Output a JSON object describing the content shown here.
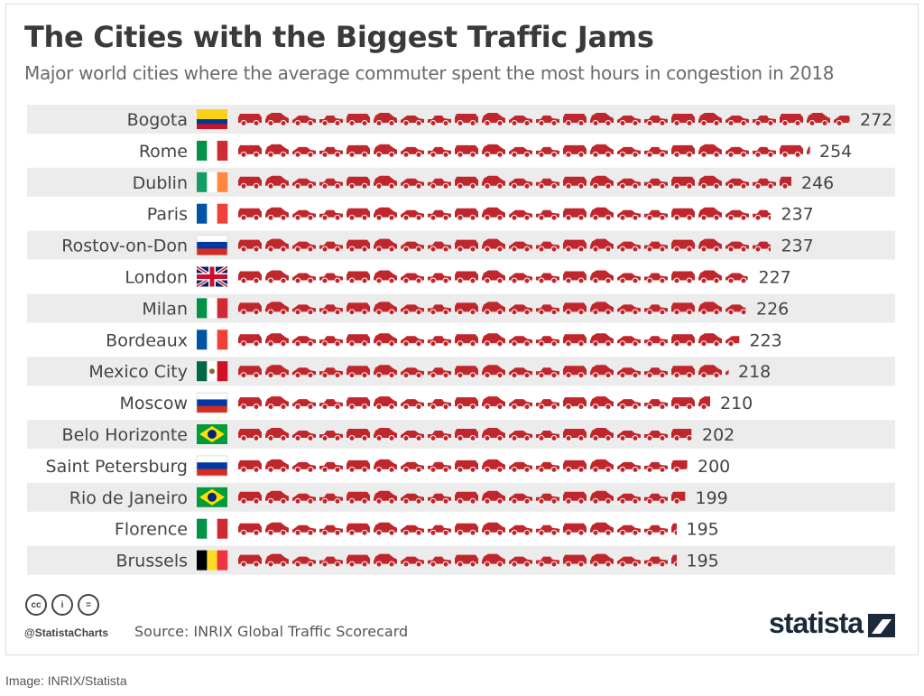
{
  "title": "The Cities with the Biggest Traffic Jams",
  "subtitle": "Major world cities where the average commuter spent the most hours in congestion in 2018",
  "footer": {
    "handle": "@StatistaCharts",
    "source": "Source: INRIX Global Traffic Scorecard",
    "brand": "statista",
    "cc_icons": [
      "cc-icon",
      "by-icon",
      "nd-icon"
    ],
    "cc_labels": [
      "cc",
      "i",
      "="
    ]
  },
  "caption": "Image: INRIX/Statista",
  "colors": {
    "car": "#c0272d",
    "row_band": "#ececec",
    "text": "#444444"
  },
  "chart_data": {
    "type": "bar",
    "unit_icon": "car-icon",
    "categories": [
      "Bogota",
      "Rome",
      "Dublin",
      "Paris",
      "Rostov-on-Don",
      "London",
      "Milan",
      "Bordeaux",
      "Mexico City",
      "Moscow",
      "Belo Horizonte",
      "Saint Petersburg",
      "Rio de Janeiro",
      "Florence",
      "Brussels"
    ],
    "values": [
      272,
      254,
      246,
      237,
      237,
      227,
      226,
      223,
      218,
      210,
      202,
      200,
      199,
      195,
      195
    ],
    "flags": [
      "colombia",
      "italy",
      "ireland",
      "france",
      "russia",
      "uk",
      "italy",
      "france",
      "mexico",
      "russia",
      "brazil",
      "russia",
      "brazil",
      "italy",
      "belgium"
    ]
  }
}
